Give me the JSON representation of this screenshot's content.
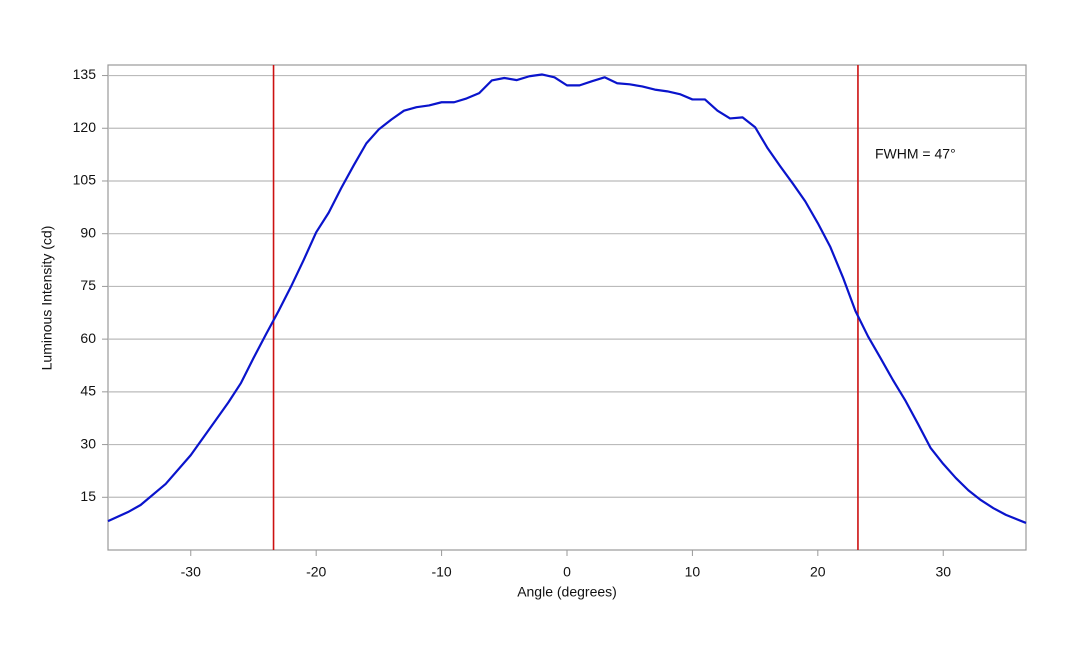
{
  "chart_data": {
    "type": "line",
    "xlabel": "Angle (degrees)",
    "ylabel": "Luminous Intensity (cd)",
    "x": [
      -36.6,
      -35,
      -34,
      -32,
      -30,
      -28,
      -27,
      -26,
      -25,
      -24,
      -23,
      -22,
      -21,
      -20,
      -19,
      -18,
      -17,
      -16,
      -15,
      -14,
      -13,
      -12,
      -11,
      -10,
      -9,
      -8,
      -7,
      -6,
      -5,
      -4,
      -3,
      -2,
      -1,
      0,
      1,
      2,
      3,
      4,
      5,
      6,
      7,
      8,
      9,
      10,
      11,
      12,
      13,
      14,
      15,
      16,
      17,
      18,
      19,
      20,
      21,
      22,
      23,
      24,
      25,
      26,
      27,
      28,
      29,
      30,
      31,
      32,
      33,
      34,
      35,
      36.6
    ],
    "series": [
      {
        "color": "#0a14cc",
        "values": [
          8.2,
          10.8,
          12.8,
          18.8,
          27,
          37,
          42,
          47.5,
          54.6,
          61.4,
          68,
          75,
          82.5,
          90.4,
          96,
          103,
          109.5,
          115.7,
          119.7,
          122.5,
          125,
          126,
          126.5,
          127.4,
          127.4,
          128.5,
          130,
          133.6,
          134.3,
          133.7,
          134.8,
          135.3,
          134.5,
          132.2,
          132.2,
          133.4,
          134.5,
          132.8,
          132.5,
          131.9,
          131,
          130.5,
          129.7,
          128.2,
          128.2,
          125,
          122.8,
          123.1,
          120.3,
          114.3,
          109.2,
          104.3,
          99.2,
          93,
          86.2,
          77.6,
          68,
          60.8,
          54.6,
          48.3,
          42.4,
          35.8,
          29,
          24.5,
          20.5,
          17,
          14.2,
          11.9,
          10,
          7.7
        ]
      }
    ],
    "vlines": {
      "color": "#cc1111",
      "values": [
        -23.4,
        23.2
      ]
    },
    "annotation": "FWHM = 47°",
    "xlim": [
      -36.6,
      36.6
    ],
    "xticks": [
      -30,
      -20,
      -10,
      0,
      10,
      20,
      30
    ],
    "ylim": [
      0,
      138
    ],
    "yticks": [
      15,
      30,
      45,
      60,
      75,
      90,
      105,
      120,
      135
    ],
    "grid": true
  }
}
